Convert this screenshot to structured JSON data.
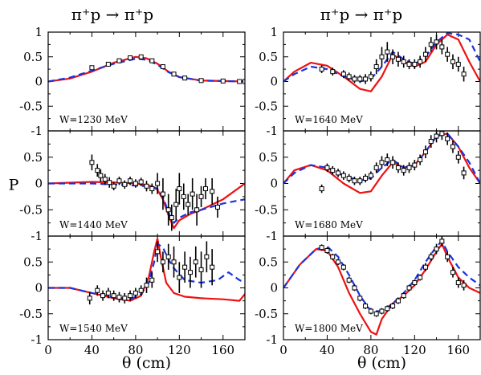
{
  "column_titles": [
    "π⁺p → π⁺p",
    "π⁺p → π⁺p"
  ],
  "colors": {
    "red": "#ee1111",
    "blue": "#1a33dd",
    "data": "#000000"
  },
  "chart_data": [
    {
      "type": "line",
      "panel": "left-1",
      "label": "W=1230 MeV",
      "xlabel": "",
      "ylabel": "",
      "xlim": [
        0,
        180
      ],
      "ylim": [
        -1,
        1
      ],
      "xticks": [],
      "yticks": [
        "-1",
        "-0.5",
        "0",
        "0.5",
        "1"
      ],
      "series": [
        {
          "style": "red-solid",
          "x": [
            0,
            20,
            40,
            60,
            80,
            90,
            100,
            110,
            120,
            140,
            160,
            180
          ],
          "y": [
            0,
            0.06,
            0.2,
            0.38,
            0.5,
            0.47,
            0.36,
            0.2,
            0.09,
            0.02,
            0.01,
            0
          ]
        },
        {
          "style": "blue-dashed",
          "x": [
            0,
            20,
            40,
            60,
            80,
            90,
            100,
            110,
            120,
            140,
            160,
            180
          ],
          "y": [
            0,
            0.08,
            0.22,
            0.36,
            0.46,
            0.44,
            0.34,
            0.19,
            0.09,
            0.02,
            0.01,
            0
          ]
        },
        {
          "style": "data",
          "x": [
            40,
            55,
            65,
            75,
            85,
            95,
            105,
            115,
            125,
            140,
            160,
            175,
            180
          ],
          "y": [
            0.28,
            0.35,
            0.42,
            0.48,
            0.5,
            0.42,
            0.3,
            0.15,
            0.07,
            0.02,
            0.01,
            0,
            0
          ],
          "err": [
            0.04,
            0.04,
            0.04,
            0.04,
            0.04,
            0.04,
            0.04,
            0.04,
            0.04,
            0.03,
            0.03,
            0.03,
            0.03
          ]
        }
      ]
    },
    {
      "type": "line",
      "panel": "left-2",
      "label": "W=1440 MeV",
      "xlabel": "",
      "ylabel": "P",
      "xlim": [
        0,
        180
      ],
      "ylim": [
        -1,
        1
      ],
      "xticks": [],
      "yticks": [
        "-1",
        "-0.5",
        "0",
        "0.5",
        ""
      ],
      "series": [
        {
          "style": "red-solid",
          "x": [
            0,
            40,
            60,
            80,
            95,
            100,
            105,
            110,
            115,
            120,
            130,
            140,
            160,
            180
          ],
          "y": [
            0,
            0.03,
            0.02,
            0,
            -0.05,
            -0.12,
            -0.3,
            -0.6,
            -0.85,
            -0.7,
            -0.58,
            -0.5,
            -0.3,
            0
          ]
        },
        {
          "style": "blue-dashed",
          "x": [
            0,
            40,
            60,
            80,
            95,
            100,
            105,
            110,
            115,
            120,
            130,
            140,
            160,
            180
          ],
          "y": [
            0,
            0,
            -0.02,
            -0.04,
            -0.06,
            -0.1,
            -0.25,
            -0.55,
            -0.75,
            -0.65,
            -0.55,
            -0.5,
            -0.38,
            -0.3
          ]
        },
        {
          "style": "data",
          "x": [
            40,
            45,
            48,
            52,
            56,
            60,
            65,
            70,
            75,
            80,
            85,
            90,
            95,
            100,
            105,
            110,
            113,
            117,
            120,
            124,
            128,
            132,
            136,
            140,
            144,
            150,
            155
          ],
          "y": [
            0.4,
            0.25,
            0.15,
            0.08,
            0.02,
            -0.05,
            0.05,
            -0.02,
            0.05,
            0,
            0.03,
            -0.05,
            -0.1,
            0,
            -0.2,
            -0.5,
            -0.65,
            -0.4,
            -0.1,
            -0.25,
            -0.4,
            -0.2,
            -0.5,
            -0.25,
            -0.1,
            -0.15,
            -0.45
          ],
          "err": [
            0.15,
            0.12,
            0.12,
            0.1,
            0.1,
            0.08,
            0.08,
            0.08,
            0.08,
            0.08,
            0.08,
            0.1,
            0.1,
            0.2,
            0.3,
            0.3,
            0.25,
            0.3,
            0.3,
            0.25,
            0.2,
            0.3,
            0.3,
            0.2,
            0.2,
            0.25,
            0.2
          ]
        }
      ]
    },
    {
      "type": "line",
      "panel": "left-3",
      "label": "W=1540 MeV",
      "xlabel": "θ (cm)",
      "ylabel": "",
      "xlim": [
        0,
        180
      ],
      "ylim": [
        -1,
        1
      ],
      "xticks": [
        "0",
        "40",
        "80",
        "120",
        "160"
      ],
      "yticks": [
        "-1",
        "-0.5",
        "0",
        "0.5",
        ""
      ],
      "series": [
        {
          "style": "red-solid",
          "x": [
            0,
            20,
            40,
            60,
            75,
            85,
            92,
            97,
            100,
            103,
            108,
            115,
            125,
            140,
            160,
            175,
            180
          ],
          "y": [
            0,
            0,
            -0.1,
            -0.2,
            -0.25,
            -0.15,
            0.2,
            0.7,
            0.95,
            0.6,
            0.1,
            -0.1,
            -0.17,
            -0.2,
            -0.22,
            -0.25,
            -0.12
          ]
        },
        {
          "style": "blue-dashed",
          "x": [
            0,
            20,
            40,
            60,
            75,
            85,
            92,
            97,
            100,
            105,
            110,
            115,
            125,
            140,
            155,
            165,
            175,
            180
          ],
          "y": [
            0,
            0,
            -0.1,
            -0.18,
            -0.22,
            -0.12,
            0.1,
            0.5,
            0.85,
            0.78,
            0.55,
            0.38,
            0.15,
            0.1,
            0.15,
            0.3,
            0.15,
            0.1
          ]
        },
        {
          "style": "data",
          "x": [
            38,
            45,
            50,
            55,
            60,
            65,
            70,
            75,
            80,
            85,
            90,
            95,
            100,
            105,
            110,
            115,
            120,
            125,
            130,
            135,
            140,
            145,
            150
          ],
          "y": [
            -0.2,
            -0.05,
            -0.15,
            -0.1,
            -0.15,
            -0.18,
            -0.2,
            -0.15,
            -0.1,
            -0.05,
            0.05,
            0.15,
            0.7,
            0.5,
            0.6,
            0.5,
            0.2,
            0.4,
            0.3,
            0.5,
            0.35,
            0.6,
            0.4
          ],
          "err": [
            0.12,
            0.1,
            0.1,
            0.1,
            0.1,
            0.1,
            0.1,
            0.1,
            0.1,
            0.1,
            0.15,
            0.15,
            0.2,
            0.2,
            0.25,
            0.3,
            0.3,
            0.3,
            0.3,
            0.3,
            0.35,
            0.3,
            0.35
          ]
        }
      ]
    },
    {
      "type": "line",
      "panel": "right-1",
      "label": "W=1640 MeV",
      "xlabel": "",
      "ylabel": "",
      "xlim": [
        0,
        180
      ],
      "ylim": [
        -1,
        1
      ],
      "xticks": [],
      "yticks": [
        "-1",
        "-0.5",
        "0",
        "0.5",
        "1"
      ],
      "series": [
        {
          "style": "red-solid",
          "x": [
            0,
            10,
            25,
            40,
            55,
            70,
            80,
            90,
            100,
            110,
            120,
            130,
            140,
            150,
            160,
            170,
            180
          ],
          "y": [
            0,
            0.2,
            0.38,
            0.32,
            0.1,
            -0.15,
            -0.2,
            0.1,
            0.55,
            0.4,
            0.3,
            0.4,
            0.75,
            0.95,
            0.85,
            0.4,
            0
          ]
        },
        {
          "style": "blue-dashed",
          "x": [
            0,
            10,
            25,
            40,
            55,
            70,
            80,
            90,
            100,
            110,
            120,
            130,
            140,
            150,
            160,
            170,
            180
          ],
          "y": [
            0,
            0.15,
            0.3,
            0.25,
            0.1,
            0,
            0.05,
            0.3,
            0.6,
            0.45,
            0.35,
            0.5,
            0.8,
            0.98,
            0.95,
            0.85,
            0.4
          ]
        },
        {
          "style": "data",
          "x": [
            35,
            45,
            55,
            60,
            65,
            70,
            75,
            80,
            85,
            90,
            95,
            100,
            105,
            110,
            115,
            120,
            125,
            130,
            135,
            140,
            145,
            150,
            155,
            160,
            165
          ],
          "y": [
            0.25,
            0.2,
            0.15,
            0.1,
            0.05,
            0.05,
            0.05,
            0.1,
            0.3,
            0.5,
            0.6,
            0.5,
            0.45,
            0.4,
            0.35,
            0.35,
            0.4,
            0.55,
            0.75,
            0.8,
            0.7,
            0.55,
            0.4,
            0.35,
            0.15
          ],
          "err": [
            0.08,
            0.08,
            0.08,
            0.08,
            0.08,
            0.08,
            0.1,
            0.1,
            0.15,
            0.2,
            0.2,
            0.15,
            0.15,
            0.12,
            0.1,
            0.1,
            0.12,
            0.15,
            0.15,
            0.15,
            0.15,
            0.15,
            0.15,
            0.15,
            0.15
          ]
        }
      ]
    },
    {
      "type": "line",
      "panel": "right-2",
      "label": "W=1680 MeV",
      "xlabel": "",
      "ylabel": "",
      "xlim": [
        0,
        180
      ],
      "ylim": [
        -1,
        1
      ],
      "xticks": [],
      "yticks": [
        "-1",
        "-0.5",
        "0",
        "0.5",
        ""
      ],
      "series": [
        {
          "style": "red-solid",
          "x": [
            0,
            10,
            25,
            40,
            55,
            70,
            80,
            90,
            100,
            110,
            120,
            130,
            140,
            150,
            160,
            170,
            180
          ],
          "y": [
            0,
            0.25,
            0.35,
            0.25,
            0,
            -0.18,
            -0.15,
            0.15,
            0.4,
            0.3,
            0.35,
            0.6,
            0.9,
            0.95,
            0.7,
            0.3,
            0
          ]
        },
        {
          "style": "blue-dashed",
          "x": [
            0,
            10,
            25,
            40,
            55,
            70,
            80,
            90,
            100,
            110,
            120,
            130,
            140,
            150,
            160,
            170,
            180
          ],
          "y": [
            0,
            0.2,
            0.35,
            0.3,
            0.15,
            0.05,
            0.1,
            0.3,
            0.45,
            0.3,
            0.35,
            0.6,
            0.9,
            0.95,
            0.7,
            0.4,
            0
          ]
        },
        {
          "style": "data",
          "x": [
            35,
            40,
            45,
            50,
            55,
            60,
            65,
            70,
            75,
            80,
            85,
            90,
            95,
            100,
            105,
            110,
            115,
            120,
            125,
            130,
            135,
            140,
            145,
            150,
            155,
            160,
            165
          ],
          "y": [
            -0.1,
            0.3,
            0.25,
            0.2,
            0.15,
            0.1,
            0.05,
            0.05,
            0.1,
            0.15,
            0.3,
            0.4,
            0.45,
            0.4,
            0.3,
            0.25,
            0.3,
            0.35,
            0.45,
            0.6,
            0.8,
            0.9,
            0.95,
            0.85,
            0.7,
            0.5,
            0.2
          ],
          "err": [
            0.08,
            0.08,
            0.08,
            0.08,
            0.08,
            0.08,
            0.08,
            0.08,
            0.08,
            0.08,
            0.1,
            0.12,
            0.12,
            0.12,
            0.1,
            0.1,
            0.1,
            0.1,
            0.1,
            0.12,
            0.12,
            0.12,
            0.12,
            0.12,
            0.12,
            0.12,
            0.12
          ]
        }
      ]
    },
    {
      "type": "line",
      "panel": "right-3",
      "label": "W=1800 MeV",
      "xlabel": "θ (cm)",
      "ylabel": "",
      "xlim": [
        0,
        180
      ],
      "ylim": [
        -1,
        1
      ],
      "xticks": [
        "0",
        "40",
        "80",
        "120",
        "160"
      ],
      "yticks": [
        "-1",
        "-0.5",
        "0",
        "0.5",
        ""
      ],
      "series": [
        {
          "style": "red-solid",
          "x": [
            0,
            15,
            30,
            40,
            50,
            60,
            70,
            80,
            85,
            90,
            100,
            110,
            120,
            130,
            140,
            145,
            150,
            160,
            170,
            180
          ],
          "y": [
            0,
            0.45,
            0.75,
            0.72,
            0.4,
            -0.1,
            -0.5,
            -0.85,
            -0.9,
            -0.6,
            -0.3,
            -0.15,
            0.05,
            0.35,
            0.7,
            0.85,
            0.6,
            0.2,
            0,
            -0.1
          ]
        },
        {
          "style": "blue-dashed",
          "x": [
            0,
            15,
            30,
            40,
            50,
            60,
            70,
            80,
            90,
            100,
            110,
            120,
            130,
            140,
            145,
            150,
            160,
            170,
            180
          ],
          "y": [
            0,
            0.45,
            0.75,
            0.8,
            0.6,
            0.25,
            -0.15,
            -0.45,
            -0.45,
            -0.3,
            -0.1,
            0.15,
            0.5,
            0.8,
            0.9,
            0.7,
            0.4,
            0.2,
            0.05
          ]
        },
        {
          "style": "data",
          "x": [
            35,
            40,
            45,
            50,
            55,
            60,
            65,
            70,
            75,
            80,
            85,
            90,
            95,
            100,
            105,
            110,
            115,
            120,
            125,
            130,
            135,
            140,
            145,
            150,
            155,
            160,
            165
          ],
          "y": [
            0.78,
            0.72,
            0.6,
            0.5,
            0.4,
            0.15,
            0,
            -0.2,
            -0.35,
            -0.45,
            -0.5,
            -0.45,
            -0.4,
            -0.35,
            -0.25,
            -0.15,
            0,
            0.1,
            0.2,
            0.4,
            0.6,
            0.75,
            0.9,
            0.6,
            0.3,
            0.1,
            0.05
          ],
          "err": [
            0.06,
            0.06,
            0.06,
            0.06,
            0.06,
            0.06,
            0.06,
            0.06,
            0.06,
            0.06,
            0.06,
            0.06,
            0.06,
            0.06,
            0.06,
            0.06,
            0.06,
            0.06,
            0.06,
            0.08,
            0.08,
            0.1,
            0.1,
            0.1,
            0.1,
            0.1,
            0.1
          ]
        }
      ]
    }
  ]
}
